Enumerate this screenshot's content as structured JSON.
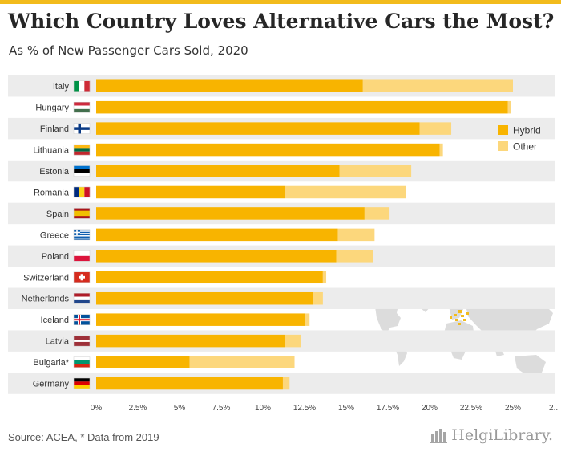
{
  "header": {
    "title": "Which Country Loves Alternative Cars the Most?",
    "subtitle": "As % of New Passenger Cars Sold, 2020"
  },
  "footer": {
    "source": "Source: ACEA, * Data from 2019",
    "brand": "HelgiLibrary."
  },
  "colors": {
    "hybrid": "#f8b400",
    "other": "#fcd77c",
    "row_band": "#ececec",
    "map_land": "#dcdcdc",
    "map_highlight": "#f2bb1c",
    "accent_bar": "#f2bb1c"
  },
  "chart_data": {
    "type": "bar",
    "orientation": "horizontal",
    "stacked": true,
    "categories": [
      "Italy",
      "Hungary",
      "Finland",
      "Lithuania",
      "Estonia",
      "Romania",
      "Spain",
      "Greece",
      "Poland",
      "Switzerland",
      "Netherlands",
      "Iceland",
      "Latvia",
      "Bulgaria*",
      "Germany"
    ],
    "flag_icons": [
      "flag-italy-icon",
      "flag-hungary-icon",
      "flag-finland-icon",
      "flag-lithuania-icon",
      "flag-estonia-icon",
      "flag-romania-icon",
      "flag-spain-icon",
      "flag-greece-icon",
      "flag-poland-icon",
      "flag-switzerland-icon",
      "flag-netherlands-icon",
      "flag-iceland-icon",
      "flag-latvia-icon",
      "flag-bulgaria-icon",
      "flag-germany-icon"
    ],
    "series": [
      {
        "name": "Hybrid",
        "values": [
          16.0,
          24.7,
          19.4,
          20.6,
          14.6,
          11.3,
          16.1,
          14.5,
          14.4,
          13.6,
          13.0,
          12.5,
          11.3,
          5.6,
          11.2
        ]
      },
      {
        "name": "Other",
        "values": [
          9.0,
          0.2,
          1.9,
          0.2,
          4.3,
          7.3,
          1.5,
          2.2,
          2.2,
          0.2,
          0.6,
          0.3,
          1.0,
          6.3,
          0.4
        ]
      }
    ],
    "xticks": [
      "0%",
      "2.5%",
      "5%",
      "7.5%",
      "10%",
      "12.5%",
      "15%",
      "17.5%",
      "20%",
      "22.5%",
      "25%",
      "2..."
    ],
    "xlim": [
      0,
      27.5
    ],
    "xlabel": "",
    "ylabel": "",
    "legend_position": "top-right",
    "grid": false
  }
}
